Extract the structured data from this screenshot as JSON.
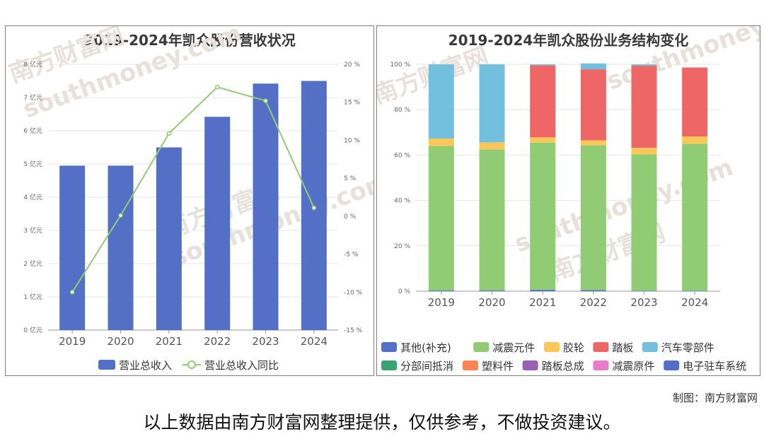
{
  "credit": "制图：南方财富网",
  "disclaimer": "以上数据由南方财富网整理提供，仅供参考，不做投资建议。",
  "watermark": {
    "cn": "南方财富网",
    "en": "southmoney.com"
  },
  "chart_data": [
    {
      "type": "bar",
      "title": "2019-2024年凯众股份营收状况",
      "categories": [
        "2019",
        "2020",
        "2021",
        "2022",
        "2023",
        "2024"
      ],
      "series": [
        {
          "name": "营业总收入",
          "type": "bar",
          "axis": "left",
          "color": "#5470c6",
          "values": [
            4.95,
            4.95,
            5.5,
            6.42,
            7.42,
            7.5
          ]
        },
        {
          "name": "营业总收入同比",
          "type": "line",
          "axis": "right",
          "color": "#91cc75",
          "values": [
            -10.0,
            0.1,
            10.9,
            17.0,
            15.2,
            1.1
          ]
        }
      ],
      "y_left": {
        "min": 0,
        "max": 8,
        "step": 1,
        "unit": "亿元",
        "tick_labels": [
          "0 亿元",
          "1 亿元",
          "2 亿元",
          "3 亿元",
          "4 亿元",
          "5 亿元",
          "6 亿元",
          "7 亿元",
          "8 亿元"
        ]
      },
      "y_right": {
        "min": -15,
        "max": 20,
        "step": 5,
        "unit": "%",
        "tick_labels": [
          "-15 %",
          "-10 %",
          "-5 %",
          "0 %",
          "5 %",
          "10 %",
          "15 %",
          "20 %"
        ]
      },
      "legend_position": "bottom-center",
      "grid": true
    },
    {
      "type": "bar",
      "stacked": true,
      "title": "2019-2024年凯众股份业务结构变化",
      "categories": [
        "2019",
        "2020",
        "2021",
        "2022",
        "2023",
        "2024"
      ],
      "series": [
        {
          "name": "其他(补充)",
          "color": "#5470c6",
          "values": [
            0.3,
            0.3,
            0.6,
            0.5,
            0.2,
            0.2
          ]
        },
        {
          "name": "减震元件",
          "color": "#91cc75",
          "values": [
            63.7,
            62.2,
            64.9,
            63.8,
            60.1,
            64.8
          ]
        },
        {
          "name": "胶轮",
          "color": "#fac858",
          "values": [
            3.3,
            3.1,
            2.3,
            2.2,
            2.9,
            3.2
          ]
        },
        {
          "name": "踏板",
          "color": "#ee6666",
          "values": [
            0.0,
            0.0,
            31.7,
            31.3,
            36.2,
            30.4
          ]
        },
        {
          "name": "汽车零部件",
          "color": "#73c0de",
          "values": [
            32.7,
            34.4,
            0.5,
            2.6,
            0.6,
            0.0
          ]
        },
        {
          "name": "分部间抵消",
          "color": "#3ba272",
          "values": [
            0,
            0,
            0,
            0,
            0,
            0
          ]
        },
        {
          "name": "塑料件",
          "color": "#fc8452",
          "values": [
            0,
            0,
            0,
            0,
            0,
            0
          ]
        },
        {
          "name": "踏板总成",
          "color": "#9a60b4",
          "values": [
            0,
            0,
            0,
            0,
            0,
            0
          ]
        },
        {
          "name": "减震原件",
          "color": "#ea7ccc",
          "values": [
            0,
            0,
            0,
            0,
            0,
            0
          ]
        },
        {
          "name": "电子驻车系统",
          "color": "#5470c6",
          "values": [
            0,
            0,
            0,
            0,
            0,
            0
          ]
        }
      ],
      "y_axis": {
        "min": 0,
        "max": 100,
        "step": 20,
        "unit": "%",
        "tick_labels": [
          "0 %",
          "20 %",
          "40 %",
          "60 %",
          "80 %",
          "100 %"
        ]
      },
      "legend_position": "bottom",
      "grid": true
    }
  ]
}
